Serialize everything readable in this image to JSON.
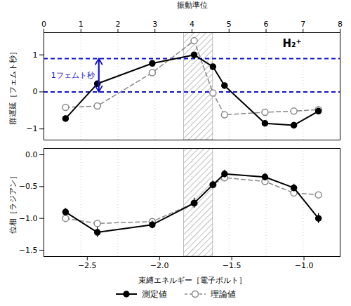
{
  "chart_data": [
    {
      "type": "line",
      "x2label": "振動準位",
      "ylabel": "群遅延［フェムト秒］",
      "x": [
        -2.65,
        -2.43,
        -2.05,
        -1.76,
        -1.63,
        -1.55,
        -1.27,
        -1.07,
        -0.9
      ],
      "xlim": [
        -2.8,
        -0.75
      ],
      "x2ticks": [
        {
          "value": -2.8,
          "label": "0"
        },
        {
          "value": -2.54375,
          "label": "1"
        },
        {
          "value": -2.2875,
          "label": "2"
        },
        {
          "value": -2.03125,
          "label": "3"
        },
        {
          "value": -1.775,
          "label": "4"
        },
        {
          "value": -1.51875,
          "label": "5"
        },
        {
          "value": -1.2625,
          "label": "6"
        },
        {
          "value": -1.00625,
          "label": "7"
        },
        {
          "value": -0.75,
          "label": "8"
        }
      ],
      "grid": true,
      "grid_x": [
        -2.8,
        -2.54375,
        -2.2875,
        -2.03125,
        -1.775,
        -1.51875,
        -1.2625,
        -1.00625,
        -0.75
      ],
      "ylim": [
        -1.3,
        1.6
      ],
      "yticks": [
        -1,
        0,
        1
      ],
      "series": [
        {
          "color": "#000000",
          "marker": "circle",
          "line_style": "solid",
          "values": [
            -0.72,
            0.22,
            0.77,
            1.0,
            0.68,
            0.17,
            -0.85,
            -0.9,
            -0.52
          ],
          "errors": [
            0.08,
            0.06,
            0.06,
            0.06,
            0.06,
            0.06,
            0.08,
            0.08,
            0.07
          ]
        },
        {
          "color": "#888888",
          "marker": "open_circle",
          "line_style": "dashed",
          "values": [
            -0.42,
            -0.38,
            0.52,
            1.38,
            -0.03,
            -0.62,
            -0.55,
            -0.52,
            -0.48
          ]
        }
      ],
      "hatch_x": [
        -1.83,
        -1.63
      ],
      "hlines": {
        "values": [
          0.9,
          0.0
        ],
        "color": "#1111CC",
        "line_style": "dashed"
      },
      "annotations": [
        {
          "text": "1フェムト秒",
          "arrow_x": -2.42,
          "arrow_y": [
            0.0,
            0.9
          ],
          "color": "#1111CC"
        },
        {
          "text": "H₂⁺"
        }
      ]
    },
    {
      "type": "line",
      "xlabel": "束縛エネルギー［電子ボルト］",
      "ylabel": "位相［ラジアン］",
      "x": [
        -2.65,
        -2.43,
        -2.05,
        -1.76,
        -1.63,
        -1.55,
        -1.27,
        -1.07,
        -0.9
      ],
      "xlim": [
        -2.8,
        -0.75
      ],
      "xticks": [
        -2.5,
        {
          "value": -2.0,
          "label": "−2.0"
        },
        -1.5,
        {
          "value": -1.0,
          "label": "−1.0"
        }
      ],
      "grid": true,
      "grid_x": [
        -2.8,
        -2.54375,
        -2.2875,
        -2.03125,
        -1.775,
        -1.51875,
        -1.2625,
        -1.00625,
        -0.75
      ],
      "ylim": [
        -1.6,
        0.1
      ],
      "yticks": [
        -1.5,
        {
          "value": -1.0,
          "label": "−1.0"
        },
        -0.5,
        {
          "value": 0.0,
          "label": "0.0"
        }
      ],
      "series": [
        {
          "name": "測定値",
          "color": "#000000",
          "marker": "circle",
          "line_style": "solid",
          "values": [
            -0.9,
            -1.22,
            -1.1,
            -0.76,
            -0.47,
            -0.3,
            -0.35,
            -0.52,
            -1.0
          ],
          "errors": [
            0.06,
            0.08,
            0.06,
            0.08,
            0.06,
            0.06,
            0.06,
            0.06,
            0.08
          ]
        },
        {
          "name": "理論値",
          "color": "#888888",
          "marker": "open_circle",
          "line_style": "dashed",
          "values": [
            -1.0,
            -1.08,
            -1.05,
            -0.76,
            -0.47,
            -0.36,
            -0.42,
            -0.6,
            -0.63
          ]
        }
      ],
      "hatch_x": [
        -1.83,
        -1.63
      ],
      "legend": "bottom"
    }
  ]
}
